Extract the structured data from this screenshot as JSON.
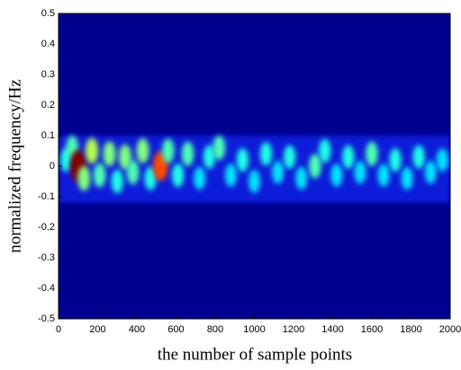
{
  "chart_data": {
    "type": "heatmap",
    "xlabel": "the number of sample points",
    "ylabel": "normalized frequency/Hz",
    "xlim": [
      0,
      2000
    ],
    "ylim": [
      -0.5,
      0.5
    ],
    "xticks": [
      0,
      200,
      400,
      600,
      800,
      1000,
      1200,
      1400,
      1600,
      1800,
      2000
    ],
    "yticks": [
      0.5,
      0.4,
      0.3,
      0.2,
      0.1,
      0,
      -0.1,
      -0.2,
      -0.3,
      -0.4,
      -0.5
    ],
    "x": [
      40,
      70,
      100,
      130,
      170,
      210,
      260,
      300,
      340,
      380,
      430,
      470,
      520,
      560,
      610,
      660,
      720,
      770,
      820,
      880,
      940,
      1000,
      1060,
      1120,
      1180,
      1240,
      1310,
      1360,
      1420,
      1480,
      1540,
      1600,
      1660,
      1720,
      1780,
      1840,
      1900,
      1960
    ],
    "y": [
      0.02,
      0.06,
      0,
      -0.04,
      0.05,
      -0.03,
      0.04,
      -0.05,
      0.03,
      -0.02,
      0.05,
      -0.04,
      0,
      0.05,
      -0.03,
      0.04,
      -0.04,
      0.03,
      0.06,
      -0.03,
      0.02,
      -0.05,
      0.04,
      -0.02,
      0.03,
      -0.04,
      0,
      0.05,
      -0.03,
      0.03,
      -0.02,
      0.04,
      -0.03,
      0.02,
      -0.04,
      0.03,
      -0.02,
      0.02
    ],
    "values": [
      0.4,
      0.45,
      1,
      0.5,
      0.55,
      0.45,
      0.5,
      0.4,
      0.5,
      0.45,
      0.5,
      0.4,
      0.8,
      0.45,
      0.4,
      0.45,
      0.35,
      0.4,
      0.45,
      0.35,
      0.4,
      0.35,
      0.4,
      0.35,
      0.4,
      0.35,
      0.45,
      0.4,
      0.35,
      0.4,
      0.35,
      0.45,
      0.35,
      0.4,
      0.35,
      0.4,
      0.35,
      0.35
    ],
    "background": "#00008f",
    "band_color": "#0a1ad8"
  }
}
